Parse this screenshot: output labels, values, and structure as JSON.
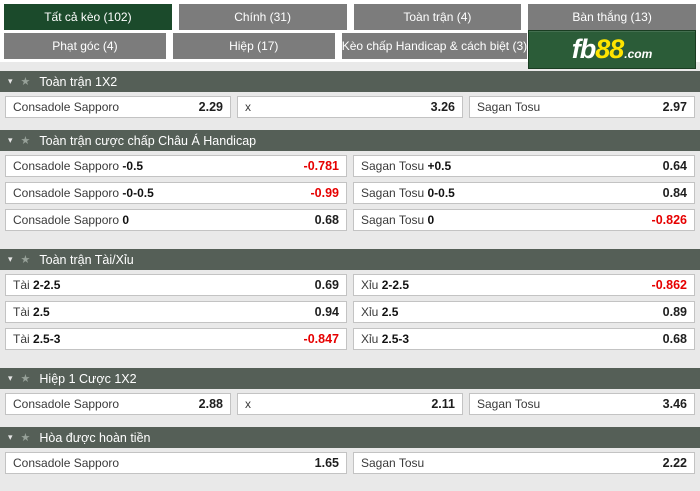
{
  "colors": {
    "active_tab_green": "#1b4a2b",
    "tab_gray": "#7c7c7c",
    "section_header": "#555f57",
    "logo_background": "#2b5c38",
    "logo_yellow": "#ffe400",
    "negative_odds_red": "#e60000",
    "page_background": "#e9e9e9"
  },
  "icons": {
    "collapse": "▾",
    "favorite": "★"
  },
  "logo": {
    "fb": "fb",
    "numbers": "88",
    "com": ".com"
  },
  "tabs": [
    {
      "id": "tab-all-odds",
      "label": "Tất cả kèo (102)",
      "active": true,
      "row": 1
    },
    {
      "id": "tab-main",
      "label": "Chính (31)",
      "active": false,
      "row": 1
    },
    {
      "id": "tab-full-match",
      "label": "Toàn trận (4)",
      "active": false,
      "row": 1
    },
    {
      "id": "tab-goals",
      "label": "Bàn thắng (13)",
      "active": false,
      "row": 1
    },
    {
      "id": "tab-corners",
      "label": "Phạt góc (4)",
      "active": false,
      "row": 2
    },
    {
      "id": "tab-halves",
      "label": "Hiệp (17)",
      "active": false,
      "row": 2
    },
    {
      "id": "tab-handicap-margin",
      "label": "Kèo chấp Handicap & cách biệt (3)",
      "active": false,
      "row": 2
    }
  ],
  "sections": [
    {
      "id": "full-match-1x2",
      "title": "Toàn trận 1X2",
      "rows": [
        [
          {
            "label": "Consadole Sapporo",
            "value": "2.29"
          },
          {
            "label": "x",
            "value": "3.26"
          },
          {
            "label": "Sagan Tosu",
            "value": "2.97"
          }
        ]
      ]
    },
    {
      "id": "full-match-asian-handicap",
      "title": "Toàn trận cược chấp Châu Á Handicap",
      "rows": [
        [
          {
            "label": "Consadole Sapporo",
            "handicap": "-0.5",
            "value": "-0.781",
            "red": true
          },
          {
            "label": "Sagan Tosu",
            "handicap": "+0.5",
            "value": "0.64"
          }
        ],
        [
          {
            "label": "Consadole Sapporo",
            "handicap": "-0-0.5",
            "value": "-0.99",
            "red": true
          },
          {
            "label": "Sagan Tosu",
            "handicap": "0-0.5",
            "value": "0.84"
          }
        ],
        [
          {
            "label": "Consadole Sapporo",
            "handicap": "0",
            "value": "0.68"
          },
          {
            "label": "Sagan Tosu",
            "handicap": "0",
            "value": "-0.826",
            "red": true
          }
        ]
      ]
    },
    {
      "id": "full-match-over-under",
      "title": "Toàn trận Tài/Xỉu",
      "rows": [
        [
          {
            "label": "Tài",
            "handicap": "2-2.5",
            "value": "0.69"
          },
          {
            "label": "Xỉu",
            "handicap": "2-2.5",
            "value": "-0.862",
            "red": true
          }
        ],
        [
          {
            "label": "Tài",
            "handicap": "2.5",
            "value": "0.94"
          },
          {
            "label": "Xỉu",
            "handicap": "2.5",
            "value": "0.89"
          }
        ],
        [
          {
            "label": "Tài",
            "handicap": "2.5-3",
            "value": "-0.847",
            "red": true
          },
          {
            "label": "Xỉu",
            "handicap": "2.5-3",
            "value": "0.68"
          }
        ]
      ]
    },
    {
      "id": "first-half-1x2",
      "title": "Hiệp 1 Cược 1X2",
      "rows": [
        [
          {
            "label": "Consadole Sapporo",
            "value": "2.88"
          },
          {
            "label": "x",
            "value": "2.11"
          },
          {
            "label": "Sagan Tosu",
            "value": "3.46"
          }
        ]
      ]
    },
    {
      "id": "draw-no-bet",
      "title": "Hòa được hoàn tiền",
      "rows": [
        [
          {
            "label": "Consadole Sapporo",
            "value": "1.65"
          },
          {
            "label": "Sagan Tosu",
            "value": "2.22"
          }
        ]
      ]
    }
  ]
}
